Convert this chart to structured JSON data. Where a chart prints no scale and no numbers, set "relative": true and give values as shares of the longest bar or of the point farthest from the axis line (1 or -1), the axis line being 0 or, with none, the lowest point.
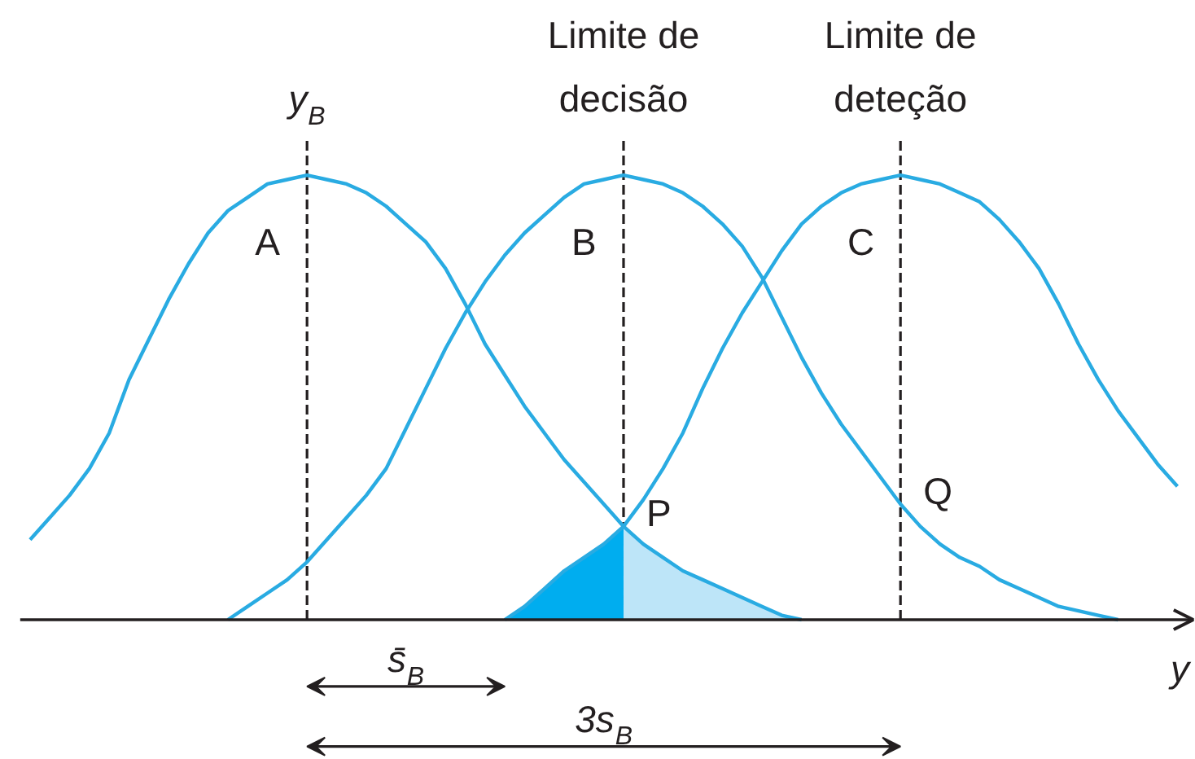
{
  "chart_data": {
    "type": "line",
    "relative": true,
    "xlabel": "y",
    "grid": "x",
    "categories": [
      null,
      null,
      null,
      null,
      null,
      null,
      null,
      null,
      null,
      null,
      null,
      null,
      null,
      null,
      null,
      null,
      null,
      null,
      null,
      null,
      null,
      null,
      null,
      null,
      null,
      null,
      null,
      null,
      null,
      null,
      null,
      null,
      null,
      null,
      null,
      null,
      null,
      null,
      null,
      null,
      null,
      null,
      null,
      null,
      null,
      null,
      null,
      null,
      null,
      null,
      null,
      null,
      null,
      null,
      null,
      null,
      null,
      null,
      null
    ],
    "series": [
      {
        "type": "area",
        "color": "#00adef",
        "values": [
          null,
          null,
          null,
          null,
          null,
          null,
          null,
          null,
          null,
          null,
          null,
          null,
          null,
          null,
          null,
          null,
          null,
          null,
          null,
          null,
          null,
          null,
          null,
          null,
          0,
          0.03,
          0.07,
          0.11,
          0.14,
          0.17,
          0.21,
          null,
          null,
          null,
          null,
          null,
          null,
          null,
          null,
          null,
          null,
          null,
          null,
          null,
          null,
          null,
          null,
          null,
          null,
          null,
          null,
          null,
          null,
          null,
          null,
          null,
          null,
          null,
          null
        ]
      },
      {
        "type": "area",
        "color": "#bde5f8",
        "values": [
          null,
          null,
          null,
          null,
          null,
          null,
          null,
          null,
          null,
          null,
          null,
          null,
          null,
          null,
          null,
          null,
          null,
          null,
          null,
          null,
          null,
          null,
          null,
          null,
          null,
          null,
          null,
          null,
          null,
          null,
          0.21,
          0.17,
          0.14,
          0.11,
          0.09,
          0.07,
          0.05,
          0.03,
          0.01,
          0,
          null,
          null,
          null,
          null,
          null,
          null,
          null,
          null,
          null,
          null,
          null,
          null,
          null,
          null,
          null,
          null,
          null,
          null,
          null
        ]
      },
      {
        "name": "A",
        "color": "#29abe2",
        "values": [
          0.18,
          0.23,
          0.28,
          0.34,
          0.42,
          0.54,
          0.63,
          0.72,
          0.8,
          0.87,
          0.92,
          0.95,
          0.98,
          0.99,
          1,
          0.99,
          0.98,
          0.96,
          0.93,
          0.89,
          0.85,
          0.79,
          0.71,
          0.62,
          0.55,
          0.48,
          0.42,
          0.36,
          0.31,
          0.26,
          0.21,
          0.17,
          0.14,
          0.11,
          0.09,
          0.07,
          0.05,
          0.03,
          0.01,
          0,
          null,
          null,
          null,
          null,
          null,
          null,
          null,
          null,
          null,
          null,
          null,
          null,
          null,
          null,
          null,
          null,
          null,
          null,
          null
        ]
      },
      {
        "name": "B",
        "color": "#29abe2",
        "values": [
          null,
          null,
          null,
          null,
          null,
          null,
          null,
          null,
          null,
          null,
          0,
          0.03,
          0.06,
          0.09,
          0.13,
          0.18,
          0.23,
          0.28,
          0.34,
          0.43,
          0.52,
          0.61,
          0.69,
          0.76,
          0.82,
          0.87,
          0.91,
          0.95,
          0.98,
          0.99,
          1,
          0.99,
          0.98,
          0.96,
          0.93,
          0.89,
          0.84,
          0.77,
          0.68,
          0.59,
          0.51,
          0.44,
          0.38,
          0.32,
          0.26,
          0.21,
          0.17,
          0.14,
          0.12,
          0.09,
          0.07,
          0.05,
          0.03,
          0.02,
          0.01,
          0,
          null,
          null,
          null
        ]
      },
      {
        "name": "C",
        "color": "#29abe2",
        "values": [
          null,
          null,
          null,
          null,
          null,
          null,
          null,
          null,
          null,
          null,
          null,
          null,
          null,
          null,
          null,
          null,
          null,
          null,
          null,
          null,
          null,
          null,
          null,
          null,
          0,
          0.03,
          0.07,
          0.11,
          0.14,
          0.17,
          0.21,
          0.27,
          0.34,
          0.42,
          0.52,
          0.61,
          0.69,
          0.76,
          0.83,
          0.89,
          0.93,
          0.96,
          0.98,
          0.99,
          1,
          0.99,
          0.98,
          0.96,
          0.94,
          0.9,
          0.85,
          0.79,
          0.71,
          0.62,
          0.54,
          0.47,
          0.41,
          0.35,
          0.3
        ]
      }
    ],
    "annotations": [
      "y$_{B}$",
      "Limite de decisão",
      "Limite de deteção",
      "s̄$_{B}$",
      "3s$_{B}$",
      "P",
      "Q"
    ]
  }
}
